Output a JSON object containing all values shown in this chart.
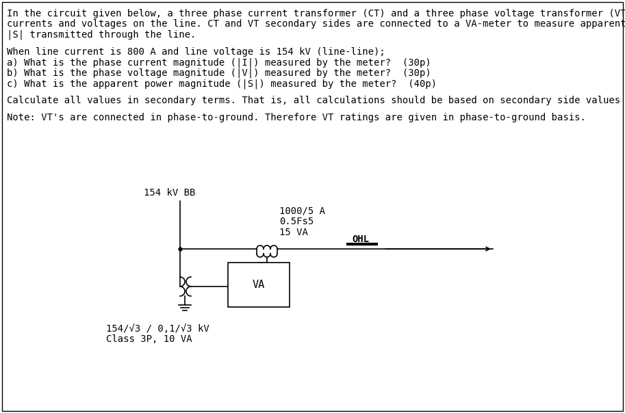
{
  "background_color": "#ffffff",
  "border_color": "#000000",
  "text_color": "#000000",
  "paragraph1_line1": "In the circuit given below, a three phase current transformer (CT) and a three phase voltage transformer (VT) are used to measure",
  "paragraph1_line2": "currents and voltages on the line. CT and VT secondary sides are connected to a VA-meter to measure apparent power magnitude",
  "paragraph1_line3": "|S| transmitted through the line.",
  "paragraph2": "When line current is 800 A and line voltage is 154 kV (line-line);",
  "item_a": "a) What is the phase current magnitude (|I|) measured by the meter?  (30p)",
  "item_b": "b) What is the phase voltage magnitude (|V|) measured by the meter?  (30p)",
  "item_c": "c) What is the apparent power magnitude (|S|) measured by the meter?  (40p)",
  "paragraph3": "Calculate all values in secondary terms. That is, all calculations should be based on secondary side values of CT's and VT's.",
  "paragraph4": "Note: VT's are connected in phase-to-ground. Therefore VT ratings are given in phase-to-ground basis.",
  "label_bb": "154 kV BB",
  "label_ct_line1": "1000/5 A",
  "label_ct_line2": "0.5Fs5",
  "label_ct_line3": "15 VA",
  "label_ohl": "OHL",
  "label_vt1": "154/√3 / 0,1/√3 kV",
  "label_vt2": "Class 3P, 10 VA",
  "label_va": "VA",
  "font_size_text": 10.0,
  "font_size_labels": 10.0
}
